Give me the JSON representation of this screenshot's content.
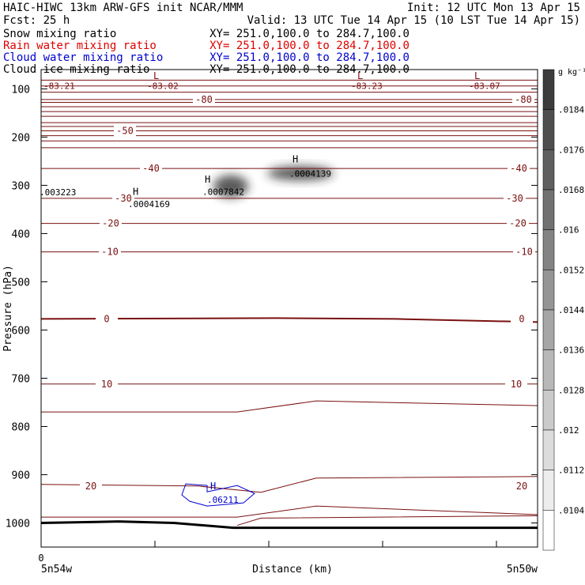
{
  "header": {
    "left1": "HAIC-HIWC 13km ARW-GFS init   NCAR/MMM",
    "left2": "Fcst:   25 h",
    "right1": "Init: 12 UTC Mon 13 Apr 15",
    "right2": "Valid: 13 UTC Tue 14 Apr 15 (10 LST Tue 14 Apr 15)"
  },
  "fields": [
    {
      "label": "Snow mixing ratio",
      "xy": "XY= 251.0,100.0 to 284.7,100.0",
      "color": "#000000"
    },
    {
      "label": "Rain water mixing ratio",
      "xy": "XY= 251.0,100.0 to 284.7,100.0",
      "color": "#e00000"
    },
    {
      "label": "Cloud water mixing ratio",
      "xy": "XY= 251.0,100.0 to 284.7,100.0",
      "color": "#0000cc"
    },
    {
      "label": "Cloud ice mixing ratio",
      "xy": "XY= 251.0,100.0 to 284.7,100.0",
      "color": "#000000"
    }
  ],
  "chart_data": {
    "type": "cross-section",
    "ylabel": "Pressure (hPa)",
    "xlabel": "Distance (km)",
    "y_ticks": [
      100,
      200,
      300,
      400,
      500,
      600,
      700,
      800,
      900,
      1000
    ],
    "ylim": [
      1050,
      60
    ],
    "x_start_label": "0",
    "x_left_label": "5n54w",
    "x_right_label": "5n50w",
    "temperature_contours": [
      {
        "label": "-80",
        "p": 122
      },
      {
        "label": "-50",
        "p": 187
      },
      {
        "label": "-40",
        "p": 265
      },
      {
        "label": "-30",
        "p": 327
      },
      {
        "label": "-20",
        "p": 379
      },
      {
        "label": "-10",
        "p": 438
      },
      {
        "label": "0",
        "p": 577
      },
      {
        "label": "10",
        "p": 712
      },
      {
        "label": "20",
        "p": 930
      }
    ],
    "max_min_labels": [
      {
        "mark": "L",
        "value": "-83.21"
      },
      {
        "mark": "L",
        "value": "-83.02"
      },
      {
        "mark": "L",
        "value": "-83.23"
      },
      {
        "mark": "L",
        "value": "-83.07"
      },
      {
        "mark": "",
        "value": ".003223"
      },
      {
        "mark": "H",
        "value": ".0004169"
      },
      {
        "mark": "H",
        "value": ".0007842"
      },
      {
        "mark": "H",
        "value": ".0004139"
      },
      {
        "mark": "H",
        "value": ".06211"
      }
    ],
    "colorbar": {
      "unit": "g kg⁻¹",
      "ticks": [
        ".0184",
        ".0176",
        ".0168",
        ".016",
        ".0152",
        ".0144",
        ".0136",
        ".0128",
        ".012",
        ".0112",
        ".0104"
      ]
    }
  }
}
